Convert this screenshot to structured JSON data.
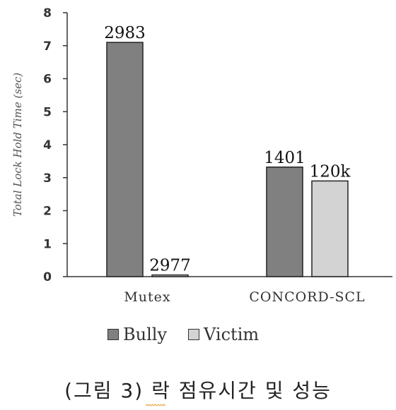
{
  "chart_data": {
    "type": "bar",
    "categories": [
      "Mutex",
      "CONCORD-SCL"
    ],
    "series": [
      {
        "name": "Bully",
        "values": [
          7.1,
          3.32
        ],
        "labels": [
          "2983",
          "1401"
        ],
        "color": "#808080"
      },
      {
        "name": "Victim",
        "values": [
          0.05,
          2.9
        ],
        "labels": [
          "2977",
          "120k"
        ],
        "color": "#d3d3d3"
      }
    ],
    "ylabel": "Total Lock Hold Time (sec)",
    "ylim": [
      0,
      8
    ],
    "yticks": [
      "0",
      "1",
      "2",
      "3",
      "4",
      "5",
      "6",
      "7",
      "8"
    ],
    "grid": false,
    "legend_position": "bottom"
  },
  "caption": "(그림 3) 락 점유시간 및 성능"
}
